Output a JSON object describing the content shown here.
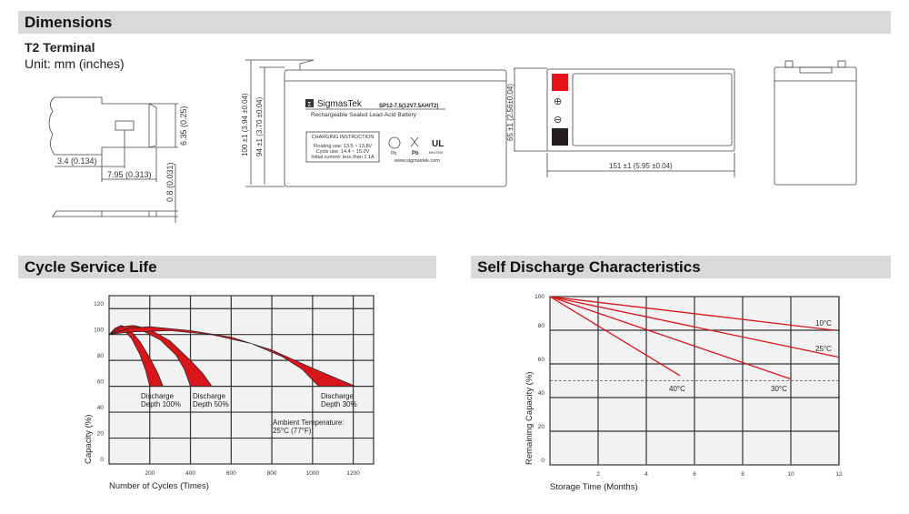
{
  "sections": {
    "dimensions": "Dimensions",
    "cycle": "Cycle Service Life",
    "self_discharge": "Self Discharge Characteristics"
  },
  "terminal": {
    "title": "T2 Terminal",
    "unit": "Unit: mm (inches)",
    "dim_height": "6.35 (0.25)",
    "dim_hole": "3.4 (0.134)",
    "dim_length": "7.95 (0.313)",
    "dim_thickness": "0.8 (0.031)"
  },
  "front": {
    "dim_total": "100 ±1 (3.94 ±0.04)",
    "dim_body": "94 ±1 (3.70 ±0.04)",
    "brand": "SigmasTek",
    "model": "SP12-7.5(12V7.5AH/T2)",
    "subtitle": "Rechargeable Sealed Lead-Acid Battery",
    "charging_title": "CHARGING INSTRUCTION",
    "charging_lines": [
      "Floating use: 13.5 ~ 13.8V",
      "Cycle use: 14.4 ~ 15.0V",
      "Initial current: less than 2.1A"
    ],
    "pb1": "Pb",
    "pb2": "Pb",
    "ul_code": "MH47928",
    "website": "www.sigmastek.com",
    "logo_letter": "Σ"
  },
  "top": {
    "dim_width": "65 ±1 (2.56±0.04)",
    "dim_length": "151 ±1 (5.95 ±0.04)",
    "positive": "⊕",
    "negative": "⊖",
    "colors": {
      "positive": "#e8141b",
      "negative": "#231f20"
    }
  },
  "chart_data": [
    {
      "type": "area",
      "title": "Cycle Service Life",
      "xlabel": "Number of Cycles (Times)",
      "ylabel": "Capacity (%)",
      "xlim": [
        0,
        1300
      ],
      "ylim": [
        0,
        130
      ],
      "xticks": [
        200,
        400,
        600,
        800,
        1000,
        1200
      ],
      "yticks": [
        0,
        20,
        40,
        60,
        80,
        100,
        120
      ],
      "grid": true,
      "color": "#d7161b",
      "series": [
        {
          "name": "Discharge Depth 100%",
          "outer": [
            [
              0,
              100
            ],
            [
              30,
              105
            ],
            [
              60,
              107
            ],
            [
              100,
              104
            ],
            [
              150,
              95
            ],
            [
              200,
              82
            ],
            [
              240,
              70
            ],
            [
              265,
              60
            ]
          ],
          "inner": [
            [
              0,
              100
            ],
            [
              40,
              104
            ],
            [
              70,
              104
            ],
            [
              110,
              97
            ],
            [
              150,
              85
            ],
            [
              180,
              72
            ],
            [
              200,
              60
            ]
          ]
        },
        {
          "name": "Discharge Depth 50%",
          "outer": [
            [
              0,
              100
            ],
            [
              60,
              106
            ],
            [
              120,
              107
            ],
            [
              200,
              104
            ],
            [
              300,
              95
            ],
            [
              400,
              80
            ],
            [
              460,
              70
            ],
            [
              505,
              60
            ]
          ],
          "inner": [
            [
              0,
              100
            ],
            [
              80,
              104
            ],
            [
              150,
              104
            ],
            [
              250,
              96
            ],
            [
              330,
              84
            ],
            [
              370,
              73
            ],
            [
              400,
              60
            ]
          ]
        },
        {
          "name": "Discharge Depth 30%",
          "outer": [
            [
              0,
              100
            ],
            [
              100,
              105
            ],
            [
              200,
              106
            ],
            [
              400,
              103
            ],
            [
              600,
              98
            ],
            [
              800,
              88
            ],
            [
              1000,
              74
            ],
            [
              1210,
              60
            ]
          ],
          "inner": [
            [
              0,
              100
            ],
            [
              100,
              102
            ],
            [
              300,
              103
            ],
            [
              500,
              100
            ],
            [
              700,
              93
            ],
            [
              850,
              83
            ],
            [
              950,
              73
            ],
            [
              1030,
              60
            ]
          ]
        }
      ],
      "labels": [
        [
          "Discharge",
          "Depth 100%"
        ],
        [
          "Discharge",
          "Depth 50%"
        ],
        [
          "Discharge",
          "Depth 30%"
        ]
      ],
      "annotation": [
        "Ambient Temperature:",
        "25°C (77°F)"
      ]
    },
    {
      "type": "line",
      "title": "Self Discharge Characteristics",
      "xlabel": "Storage Time (Months)",
      "ylabel": "Remaining Capacity (%)",
      "xlim": [
        0,
        12
      ],
      "ylim": [
        0,
        100
      ],
      "xticks": [
        0,
        2,
        4,
        6,
        8,
        10,
        12
      ],
      "yticks": [
        0,
        20,
        40,
        60,
        80,
        100
      ],
      "grid": true,
      "color": "#d7161b",
      "reference_line": 50,
      "series": [
        {
          "name": "10°C",
          "points": [
            [
              0,
              100
            ],
            [
              11.8,
              80
            ]
          ]
        },
        {
          "name": "25°C",
          "points": [
            [
              0,
              100
            ],
            [
              12,
              64
            ]
          ]
        },
        {
          "name": "30°C",
          "points": [
            [
              0,
              100
            ],
            [
              10,
              51
            ]
          ]
        },
        {
          "name": "40°C",
          "points": [
            [
              0,
              100
            ],
            [
              5.4,
              53
            ]
          ]
        }
      ]
    }
  ]
}
